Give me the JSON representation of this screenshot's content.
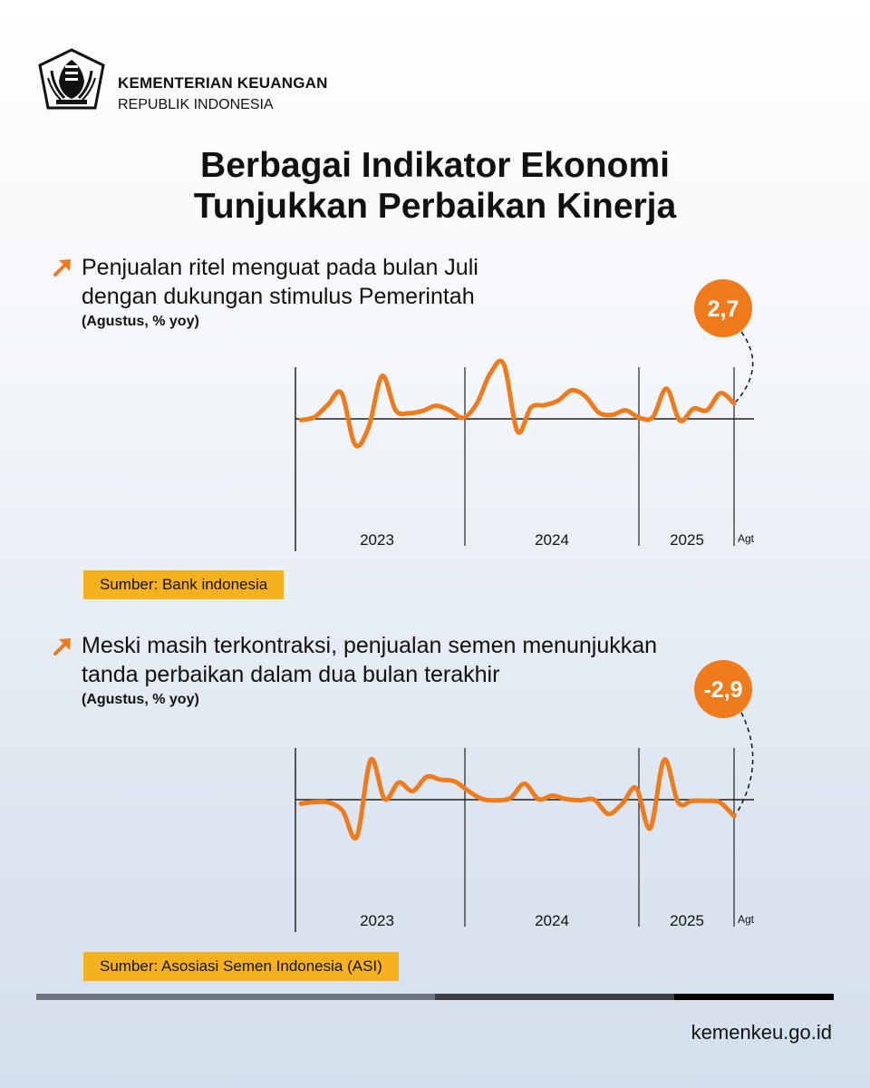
{
  "header": {
    "org_line1": "KEMENTERIAN KEUANGAN",
    "org_line2": "REPUBLIK INDONESIA",
    "logo_icon": "kemenkeu-emblem-icon"
  },
  "title": {
    "line1": "Berbagai Indikator Ekonomi",
    "line2": "Tunjukkan Perbaikan Kinerja"
  },
  "colors": {
    "accent": "#f07b1d",
    "source_bg": "#f5b21e",
    "axis": "#222222"
  },
  "sections": [
    {
      "heading_line1": "Penjualan ritel menguat pada bulan Juli",
      "heading_line2": "dengan dukungan stimulus Pemerintah",
      "unit": "(Agustus, % yoy)",
      "source": "Sumber: Bank indonesia",
      "icon": "trend-up-arrow-icon"
    },
    {
      "heading_line1": "Meski masih terkontraksi, penjualan semen menunjukkan",
      "heading_line2": "tanda perbaikan dalam dua bulan terakhir",
      "unit": "(Agustus, % yoy)",
      "source": "Sumber: Asosiasi Semen Indonesia (ASI)",
      "icon": "trend-up-arrow-icon"
    }
  ],
  "chart_data": [
    {
      "type": "line",
      "series": [
        {
          "values": [
            -0.2,
            0.3,
            2.5,
            4.5,
            -4.5,
            -1.5,
            7.5,
            1.5,
            1.0,
            1.4,
            2.3,
            1.5,
            0.2,
            2.7,
            8.0,
            9.5,
            -2.2,
            2.0,
            2.4,
            3.2,
            5.0,
            4.0,
            1.1,
            0.7,
            1.5,
            0.2,
            0.3,
            5.3,
            -0.3,
            1.8,
            1.5,
            4.5,
            2.7
          ]
        }
      ],
      "x_labels": [
        "2023",
        "2024",
        "2025",
        "Agt"
      ],
      "callout": "2,7",
      "ylim": [
        -13,
        13
      ]
    },
    {
      "type": "line",
      "series": [
        {
          "values": [
            -0.7,
            -0.4,
            -0.5,
            -2.0,
            -6.5,
            7.0,
            0.1,
            3.0,
            1.5,
            4.0,
            3.5,
            3.2,
            1.5,
            0.1,
            -0.1,
            0.3,
            2.8,
            0.1,
            0.7,
            0.1,
            -0.1,
            0.0,
            -2.5,
            -0.7,
            2.0,
            -5.0,
            7.0,
            -0.5,
            -0.2,
            -0.2,
            -0.5,
            -2.9
          ]
        }
      ],
      "x_labels": [
        "2023",
        "2024",
        "2025",
        "Agt"
      ],
      "callout": "-2,9",
      "ylim": [
        -15,
        15
      ]
    }
  ],
  "footer": {
    "website": "kemenkeu.go.id"
  }
}
